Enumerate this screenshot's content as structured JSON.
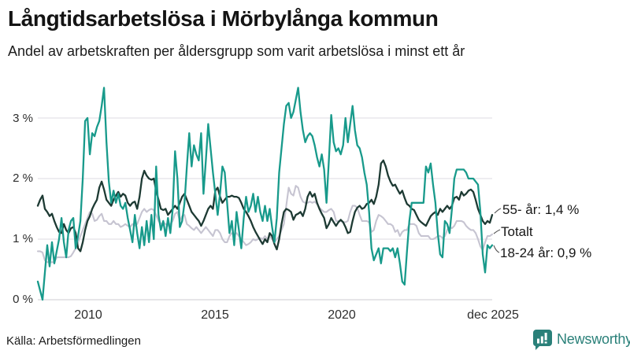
{
  "header": {
    "title": "Långtidsarbetslösa i Mörbylånga kommun",
    "subtitle": "Andel av arbetskraften per åldersgrupp som varit arbetslösa i minst ett år"
  },
  "footer": {
    "source": "Källa: Arbetsförmedlingen",
    "brand": "Newsworthy"
  },
  "colors": {
    "series_55": "#1d3a33",
    "series_total": "#c6c4d1",
    "series_18_24": "#189a8b",
    "grid": "#e3e2e8",
    "baseline": "#d6d5db",
    "brand_teal": "#2a8079",
    "connector": "#555555"
  },
  "chart_data": {
    "type": "line",
    "title": "Långtidsarbetslösa i Mörbylånga kommun",
    "subtitle": "Andel av arbetskraften per åldersgrupp som varit arbetslösa i minst ett år",
    "unit": "%",
    "x_start": 2008.0,
    "x_end": 2025.92,
    "ylim": [
      0,
      3.6
    ],
    "grid": true,
    "legend_position": "right-end-labels",
    "y_grid": [
      3,
      2,
      1,
      0
    ],
    "y_tick_labels": [
      "3 %",
      "2 %",
      "1 %",
      "0 %"
    ],
    "x_tick_labels": [
      "2010",
      "2015",
      "2020",
      "dec 2025"
    ],
    "draw_order": [
      1,
      0,
      2
    ],
    "series": [
      {
        "name": "55- år",
        "end_label": "55- år: 1,4 %",
        "end_value": 1.4,
        "color": "#1d3a33",
        "width": 2.3,
        "values": [
          1.55,
          1.65,
          1.72,
          1.5,
          1.45,
          1.38,
          1.42,
          1.3,
          1.2,
          1.12,
          1.1,
          1.25,
          1.15,
          1.1,
          1.18,
          1.2,
          1.1,
          0.85,
          0.8,
          0.95,
          1.15,
          1.3,
          1.38,
          1.5,
          1.58,
          1.65,
          1.85,
          1.95,
          1.82,
          1.65,
          1.6,
          1.55,
          1.65,
          1.72,
          1.78,
          1.7,
          1.75,
          1.72,
          1.6,
          1.55,
          1.6,
          1.62,
          1.5,
          1.7,
          2.0,
          2.13,
          2.05,
          2.0,
          1.98,
          2.0,
          1.8,
          1.65,
          1.5,
          1.48,
          1.5,
          1.4,
          1.45,
          1.5,
          1.55,
          1.5,
          1.6,
          1.7,
          1.75,
          1.65,
          1.55,
          1.45,
          1.4,
          1.35,
          1.3,
          1.22,
          1.3,
          1.4,
          1.5,
          1.55,
          1.5,
          1.8,
          1.85,
          1.7,
          1.6,
          1.65,
          1.7,
          1.7,
          1.72,
          1.7,
          1.7,
          1.68,
          1.6,
          1.5,
          1.45,
          1.38,
          1.3,
          1.2,
          1.12,
          1.05,
          0.98,
          0.92,
          1.0,
          0.95,
          1.1,
          1.05,
          0.92,
          0.83,
          1.0,
          1.25,
          1.45,
          1.5,
          1.48,
          1.45,
          1.32,
          1.4,
          1.42,
          1.45,
          1.38,
          1.5,
          1.7,
          1.78,
          1.7,
          1.75,
          1.6,
          1.5,
          1.42,
          1.35,
          1.18,
          1.25,
          1.35,
          1.28,
          1.22,
          1.28,
          1.32,
          1.28,
          1.2,
          1.1,
          1.12,
          1.3,
          1.45,
          1.52,
          1.55,
          1.5,
          1.52,
          1.58,
          1.6,
          1.65,
          1.58,
          1.7,
          1.9,
          2.25,
          2.3,
          2.2,
          2.05,
          1.95,
          1.88,
          1.9,
          1.82,
          1.75,
          1.8,
          1.68,
          1.58,
          1.55,
          1.5,
          1.48,
          1.4,
          1.32,
          1.28,
          1.25,
          1.22,
          1.3,
          1.38,
          1.42,
          1.45,
          1.4,
          1.5,
          1.45,
          1.5,
          1.55,
          1.5,
          1.55,
          1.68,
          1.7,
          1.65,
          1.78,
          1.72,
          1.75,
          1.8,
          1.82,
          1.78,
          1.65,
          1.5,
          1.4,
          1.3,
          1.25,
          1.3,
          1.27,
          1.4
        ]
      },
      {
        "name": "Totalt",
        "end_label": "Totalt",
        "color": "#c6c4d1",
        "width": 2.1,
        "values": [
          0.8,
          0.8,
          0.78,
          0.65,
          0.62,
          0.62,
          0.62,
          0.62,
          0.7,
          0.7,
          0.7,
          0.7,
          0.7,
          0.7,
          0.72,
          0.78,
          0.85,
          0.95,
          1.05,
          1.15,
          1.25,
          1.35,
          1.45,
          1.42,
          1.3,
          1.32,
          1.38,
          1.42,
          1.3,
          1.3,
          1.25,
          1.25,
          1.3,
          1.25,
          1.25,
          1.2,
          1.22,
          1.25,
          1.22,
          1.2,
          1.25,
          1.22,
          1.25,
          1.35,
          1.45,
          1.5,
          1.45,
          1.48,
          1.5,
          1.48,
          1.4,
          1.3,
          1.25,
          1.28,
          1.25,
          1.22,
          1.25,
          1.3,
          1.42,
          1.45,
          1.3,
          1.38,
          1.4,
          1.25,
          1.22,
          1.18,
          1.15,
          1.2,
          1.15,
          1.1,
          1.15,
          1.2,
          1.15,
          1.1,
          1.05,
          1.15,
          1.15,
          1.1,
          1.0,
          0.95,
          0.95,
          1.05,
          1.1,
          1.08,
          1.1,
          1.05,
          1.0,
          0.95,
          0.9,
          0.92,
          0.95,
          1.0,
          0.98,
          1.0,
          1.02,
          1.0,
          1.05,
          1.0,
          1.05,
          1.0,
          0.95,
          1.0,
          1.05,
          1.15,
          1.25,
          1.55,
          1.85,
          1.75,
          1.72,
          1.88,
          1.85,
          1.7,
          1.62,
          1.6,
          1.6,
          1.62,
          1.6,
          1.62,
          1.58,
          1.52,
          1.48,
          1.45,
          1.45,
          1.48,
          1.5,
          1.45,
          1.3,
          1.3,
          1.3,
          1.28,
          1.28,
          1.3,
          1.45,
          1.55,
          1.55,
          1.52,
          1.4,
          1.3,
          1.3,
          1.3,
          1.28,
          1.12,
          1.15,
          1.3,
          1.4,
          1.38,
          1.35,
          1.3,
          1.25,
          1.25,
          1.22,
          1.12,
          1.15,
          1.05,
          1.12,
          1.15,
          1.15,
          1.25,
          1.25,
          1.25,
          1.22,
          1.1,
          1.05,
          1.05,
          1.05,
          1.05,
          1.0,
          1.0,
          1.02,
          1.05,
          1.05,
          1.02,
          1.05,
          1.15,
          1.2,
          1.18,
          1.22,
          1.3,
          1.3,
          1.3,
          1.28,
          1.22,
          1.18,
          1.15,
          1.15,
          1.1,
          1.0,
          0.88,
          0.82,
          0.95,
          1.05,
          1.05,
          1.08
        ]
      },
      {
        "name": "18-24 år",
        "end_label": "18-24 år: 0,9 %",
        "end_value": 0.9,
        "color": "#189a8b",
        "width": 2.3,
        "values": [
          0.3,
          0.15,
          0.0,
          0.45,
          0.9,
          0.55,
          0.95,
          0.6,
          0.8,
          1.0,
          1.35,
          0.95,
          0.7,
          1.15,
          1.3,
          1.35,
          0.85,
          1.05,
          1.3,
          2.0,
          2.95,
          3.0,
          2.4,
          2.75,
          2.7,
          2.85,
          2.95,
          3.2,
          3.5,
          2.6,
          1.95,
          1.6,
          1.8,
          1.6,
          1.75,
          1.55,
          1.5,
          1.6,
          1.35,
          1.15,
          0.95,
          1.4,
          1.1,
          0.85,
          1.2,
          0.9,
          1.3,
          0.95,
          1.4,
          1.0,
          2.2,
          1.4,
          1.15,
          1.3,
          1.05,
          1.35,
          1.1,
          1.5,
          2.45,
          2.0,
          1.2,
          1.3,
          1.6,
          2.2,
          2.75,
          2.2,
          2.55,
          2.4,
          2.3,
          2.75,
          1.75,
          2.3,
          2.9,
          2.5,
          2.1,
          1.75,
          1.4,
          1.75,
          2.2,
          2.1,
          1.6,
          1.1,
          1.3,
          0.9,
          1.45,
          1.15,
          0.85,
          1.35,
          1.7,
          1.45,
          1.55,
          1.75,
          1.45,
          1.7,
          1.45,
          1.3,
          1.55,
          1.3,
          1.5,
          1.2,
          0.95,
          1.35,
          2.1,
          2.5,
          2.9,
          3.2,
          3.25,
          3.0,
          3.1,
          3.3,
          3.5,
          3.1,
          2.8,
          2.6,
          2.7,
          2.75,
          2.7,
          2.55,
          2.35,
          2.2,
          2.4,
          2.15,
          1.6,
          2.3,
          3.05,
          2.6,
          2.45,
          2.5,
          2.4,
          2.55,
          3.0,
          2.6,
          2.9,
          3.2,
          2.8,
          2.55,
          2.5,
          2.35,
          2.1,
          1.9,
          1.45,
          0.85,
          0.65,
          0.75,
          0.85,
          0.6,
          0.85,
          0.85,
          0.85,
          0.8,
          0.85,
          0.7,
          0.85,
          0.6,
          0.3,
          0.25,
          0.8,
          1.3,
          1.6,
          1.6,
          1.6,
          1.6,
          1.6,
          1.6,
          2.2,
          2.1,
          2.25,
          1.9,
          1.6,
          1.1,
          0.75,
          0.7,
          1.3,
          1.25,
          1.1,
          1.5,
          2.0,
          2.15,
          2.15,
          2.15,
          2.15,
          2.1,
          2.0,
          2.0,
          2.0,
          1.95,
          1.9,
          1.45,
          0.75,
          0.45,
          0.9,
          0.85,
          0.9
        ]
      }
    ]
  }
}
